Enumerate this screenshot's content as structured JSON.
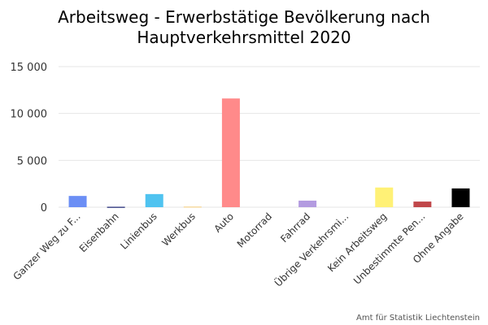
{
  "chart_data": {
    "type": "bar",
    "title_lines": [
      "Arbeitsweg - Erwerbstätige Bevölkerung nach",
      "Hauptverkehrsmittel 2020"
    ],
    "categories": [
      "Ganzer Weg zu F...",
      "Eisenbahn",
      "Linienbus",
      "Werkbus",
      "Auto",
      "Motorrad",
      "Fahrrad",
      "Übrige Verkehrsmi...",
      "Kein Arbeitsweg",
      "Unbestimmte Pen...",
      "Ohne Angabe"
    ],
    "values": [
      1200,
      50,
      1400,
      80,
      11600,
      0,
      700,
      0,
      2100,
      600,
      2000
    ],
    "colors": [
      "#6b8ef5",
      "#434a8a",
      "#4fc3f0",
      "#f5d9a0",
      "#ff8a8a",
      "#666666",
      "#b39be0",
      "#888888",
      "#fff176",
      "#c0474a",
      "#000000"
    ],
    "ylim": [
      0,
      15000
    ],
    "yticks": [
      0,
      5000,
      10000,
      15000
    ],
    "ytick_labels": [
      "0",
      "5 000",
      "10 000",
      "15 000"
    ],
    "grid": true,
    "legend": "none",
    "source": "Amt für Statistik Liechtenstein"
  }
}
